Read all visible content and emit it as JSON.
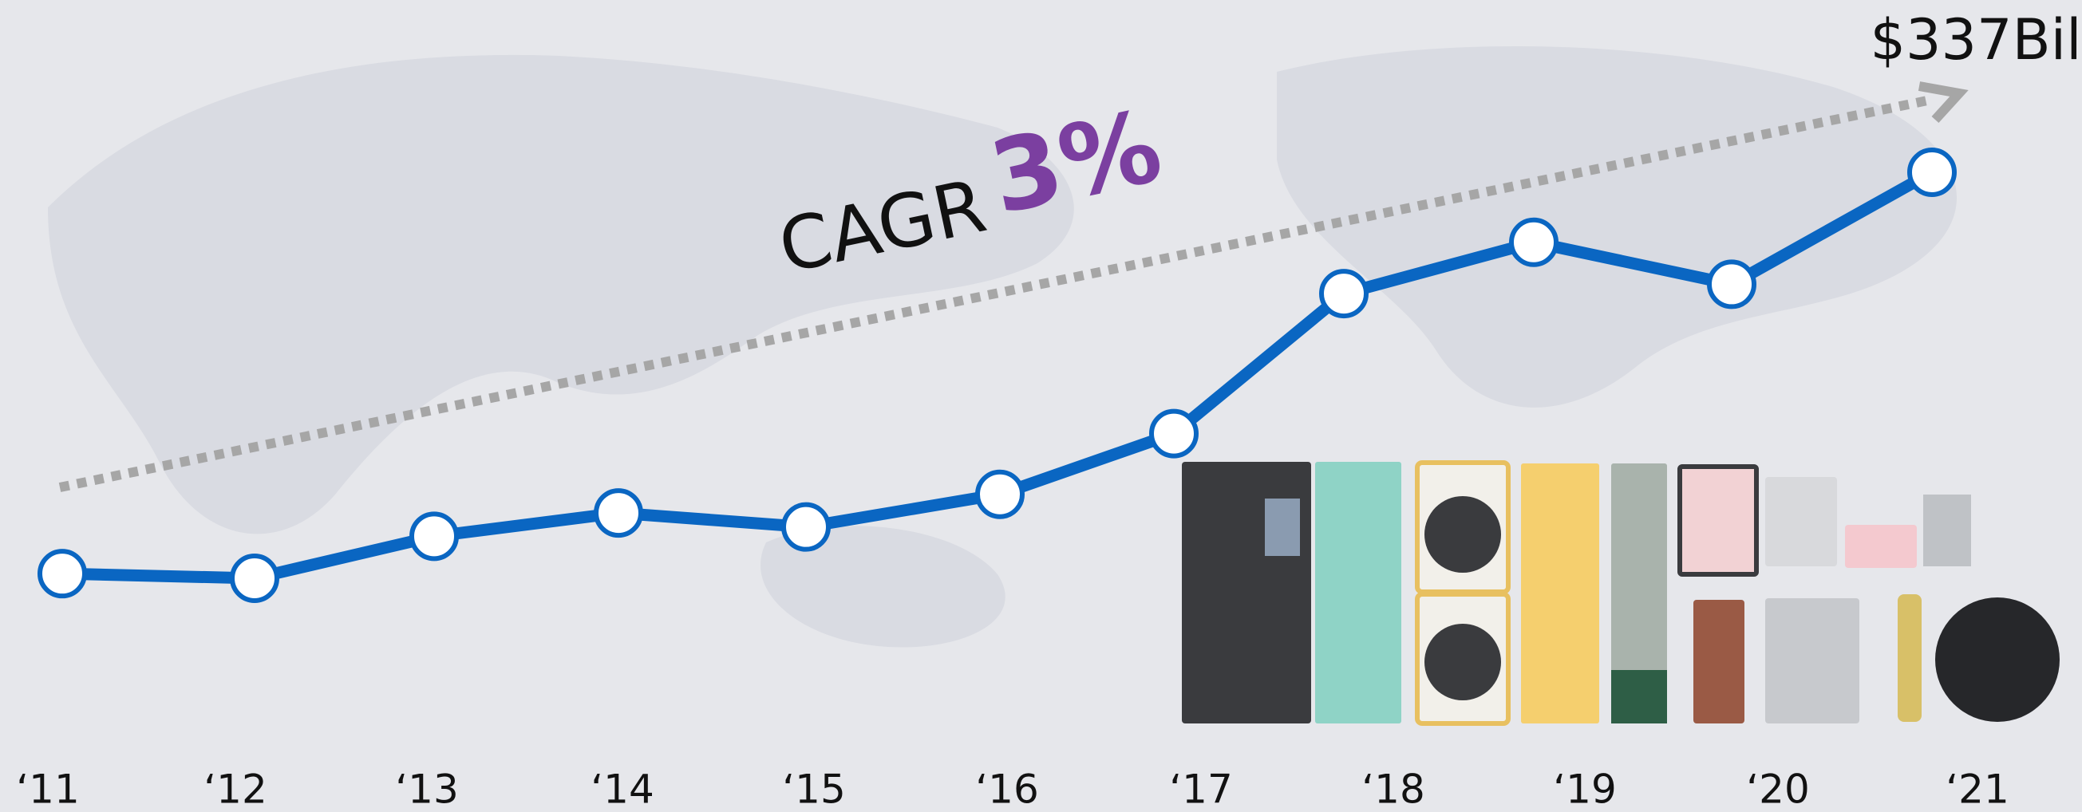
{
  "chart_data": {
    "type": "line",
    "categories": [
      "‘11",
      "‘12",
      "‘13",
      "‘14",
      "‘15",
      "‘16",
      "‘17",
      "‘18",
      "‘19",
      "‘20",
      "‘21"
    ],
    "values": [
      251,
      250,
      259,
      264,
      261,
      268,
      281,
      311,
      322,
      313,
      337
    ],
    "value_labels": [
      null,
      null,
      null,
      null,
      null,
      null,
      null,
      null,
      null,
      null,
      "$337Bil"
    ],
    "color": "#0a66c2",
    "annotations": [
      "CAGR",
      "3%"
    ],
    "trend_color": "#a6a6a6",
    "highlight_color": "#7b3fa0"
  }
}
